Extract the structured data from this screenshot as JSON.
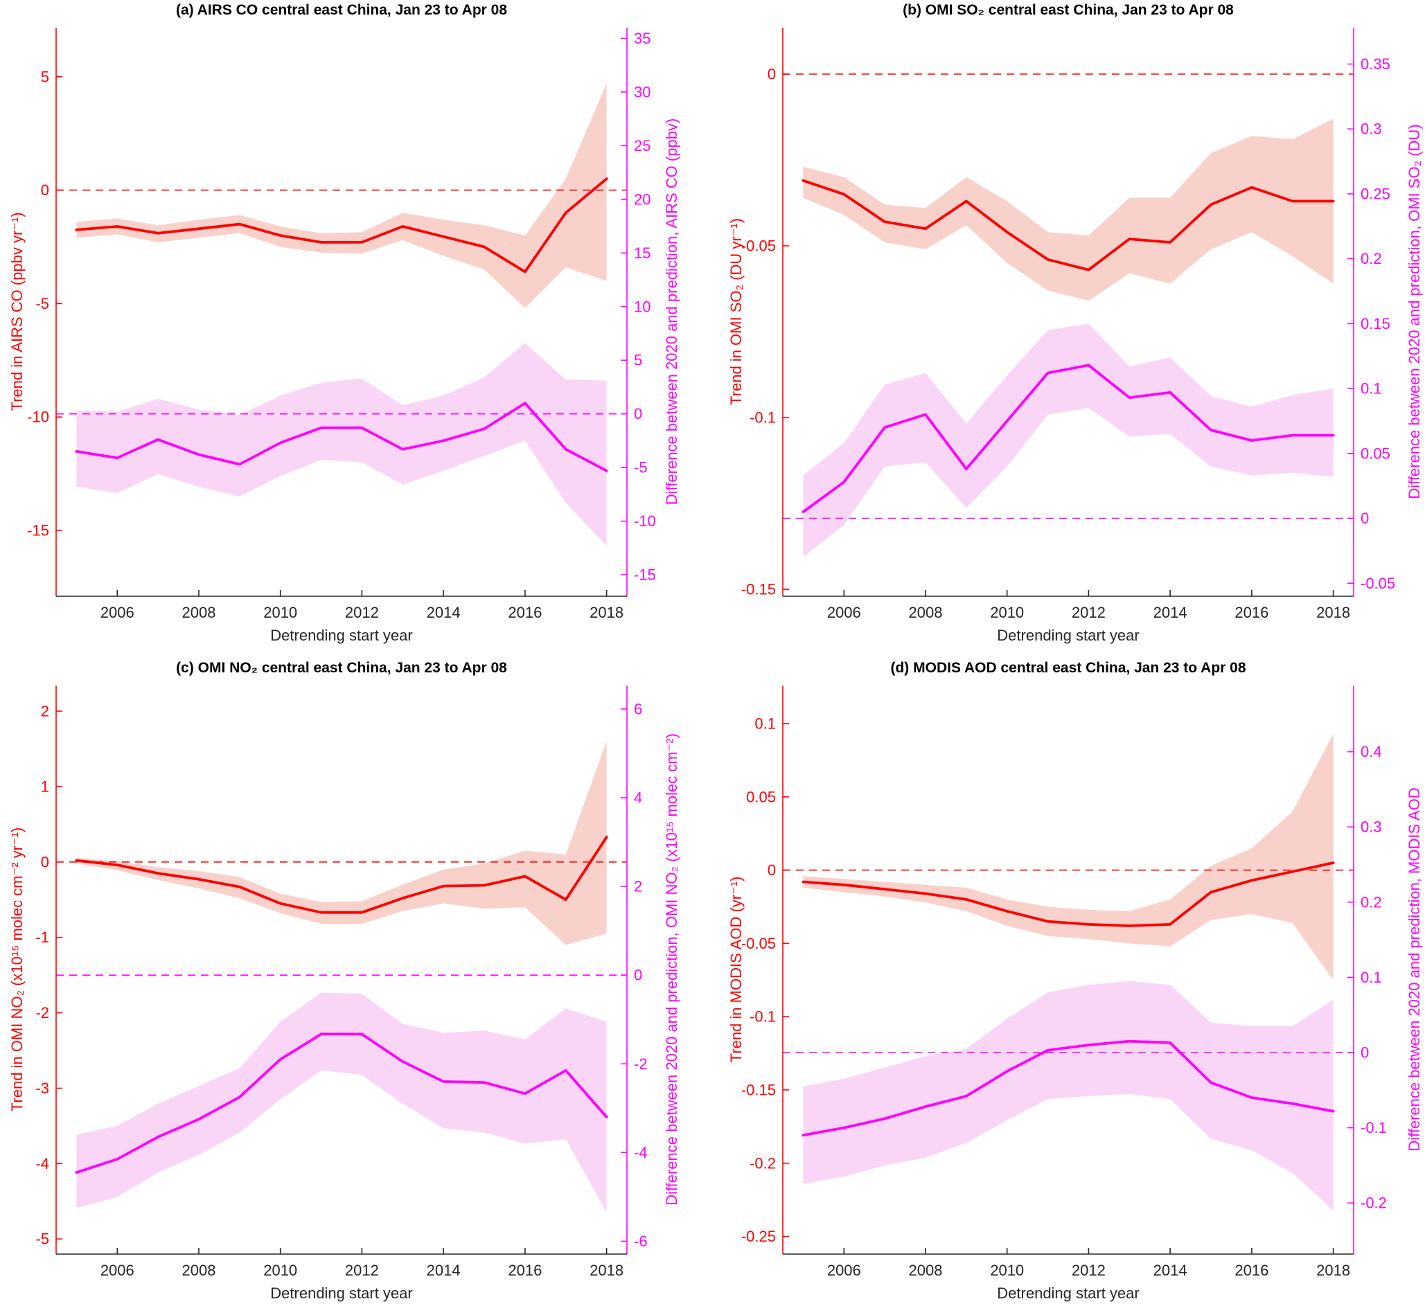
{
  "figure": {
    "background": "#ffffff",
    "xlabel": "Detrending start year",
    "x_ticks": [
      2006,
      2008,
      2010,
      2012,
      2014,
      2016,
      2018
    ],
    "xlim": [
      2004.5,
      2018.5
    ],
    "colors": {
      "trend_line": "#ff0000",
      "trend_band": "#f9d1cb",
      "diff_line": "#ff00ff",
      "diff_band": "#fad6f6",
      "x_axis": "#262626",
      "title_text": "#000000"
    }
  },
  "chart_data": [
    {
      "id": "a",
      "type": "line",
      "title": "(a) AIRS CO central east China, Jan 23 to Apr 08",
      "x": [
        2005,
        2006,
        2007,
        2008,
        2009,
        2010,
        2011,
        2012,
        2013,
        2014,
        2015,
        2016,
        2017,
        2018
      ],
      "left_axis": {
        "label": "Trend in AIRS CO (ppbv yr⁻¹)",
        "color": "#ff0000",
        "ticks": [
          5,
          0,
          -5,
          -10,
          -15
        ],
        "lim": [
          -17.9,
          7.16
        ],
        "zero_dashed_line": true
      },
      "right_axis": {
        "label": "Difference between 2020 and prediction, AIRS CO (ppbv)",
        "color": "#ff00ff",
        "ticks": [
          35,
          30,
          25,
          20,
          15,
          10,
          5,
          0,
          -5,
          -10,
          -15
        ],
        "lim": [
          -17.0,
          36.0
        ],
        "zero_dashed_line": true
      },
      "series": [
        {
          "name": "trend",
          "axis": "left",
          "color": "#ff0000",
          "band_color": "#f9d1cb",
          "values": [
            -1.75,
            -1.6,
            -1.9,
            -1.7,
            -1.5,
            -2.0,
            -2.3,
            -2.3,
            -1.6,
            -2.05,
            -2.5,
            -3.6,
            -1.0,
            0.5
          ],
          "band_upper": [
            -1.4,
            -1.25,
            -1.55,
            -1.3,
            -1.1,
            -1.6,
            -1.9,
            -1.85,
            -1.0,
            -1.3,
            -1.55,
            -2.0,
            0.5,
            4.7
          ],
          "band_lower": [
            -2.1,
            -1.95,
            -2.3,
            -2.1,
            -1.9,
            -2.5,
            -2.75,
            -2.8,
            -2.2,
            -2.9,
            -3.5,
            -5.2,
            -3.4,
            -4.0
          ]
        },
        {
          "name": "difference-2020-vs-prediction",
          "axis": "right",
          "color": "#ff00ff",
          "band_color": "#fad6f6",
          "values": [
            -3.5,
            -4.1,
            -2.4,
            -3.8,
            -4.7,
            -2.7,
            -1.3,
            -1.3,
            -3.3,
            -2.5,
            -1.4,
            1.0,
            -3.3,
            -5.3
          ],
          "band_upper": [
            0.3,
            0.2,
            1.4,
            0.4,
            -0.1,
            1.7,
            2.9,
            3.3,
            0.8,
            1.7,
            3.4,
            6.6,
            3.2,
            3.1
          ],
          "band_lower": [
            -6.8,
            -7.4,
            -5.6,
            -6.8,
            -7.7,
            -5.8,
            -4.3,
            -4.5,
            -6.6,
            -5.3,
            -3.9,
            -2.5,
            -8.3,
            -12.3
          ]
        }
      ]
    },
    {
      "id": "b",
      "type": "line",
      "title": "(b) OMI SO₂ central east China, Jan 23 to Apr 08",
      "x": [
        2005,
        2006,
        2007,
        2008,
        2009,
        2010,
        2011,
        2012,
        2013,
        2014,
        2015,
        2016,
        2017,
        2018
      ],
      "left_axis": {
        "label": "Trend in OMI SO₂ (DU yr⁻¹)",
        "color": "#ff0000",
        "ticks": [
          0,
          -0.05,
          -0.1,
          -0.15
        ],
        "lim": [
          -0.152,
          0.0135
        ],
        "zero_dashed_line": true
      },
      "right_axis": {
        "label": "Difference between 2020 and prediction, OMI SO₂ (DU)",
        "color": "#ff00ff",
        "ticks": [
          0.35,
          0.3,
          0.25,
          0.2,
          0.15,
          0.1,
          0.05,
          0,
          -0.05
        ],
        "lim": [
          -0.06,
          0.378
        ],
        "zero_dashed_line": true
      },
      "series": [
        {
          "name": "trend",
          "axis": "left",
          "color": "#ff0000",
          "band_color": "#f9d1cb",
          "values": [
            -0.031,
            -0.035,
            -0.043,
            -0.045,
            -0.037,
            -0.046,
            -0.054,
            -0.057,
            -0.048,
            -0.049,
            -0.038,
            -0.033,
            -0.037,
            -0.037
          ],
          "band_upper": [
            -0.027,
            -0.03,
            -0.038,
            -0.039,
            -0.03,
            -0.037,
            -0.046,
            -0.047,
            -0.036,
            -0.036,
            -0.023,
            -0.018,
            -0.019,
            -0.013
          ],
          "band_lower": [
            -0.036,
            -0.041,
            -0.049,
            -0.051,
            -0.044,
            -0.055,
            -0.063,
            -0.066,
            -0.058,
            -0.061,
            -0.051,
            -0.046,
            -0.053,
            -0.061
          ]
        },
        {
          "name": "difference-2020-vs-prediction",
          "axis": "right",
          "color": "#ff00ff",
          "band_color": "#fad6f6",
          "values": [
            0.005,
            0.028,
            0.07,
            0.08,
            0.038,
            0.075,
            0.112,
            0.118,
            0.093,
            0.097,
            0.068,
            0.06,
            0.064,
            0.064
          ],
          "band_upper": [
            0.033,
            0.058,
            0.103,
            0.112,
            0.073,
            0.11,
            0.145,
            0.15,
            0.117,
            0.124,
            0.094,
            0.086,
            0.095,
            0.1
          ],
          "band_lower": [
            -0.03,
            -0.005,
            0.04,
            0.043,
            0.008,
            0.04,
            0.08,
            0.085,
            0.063,
            0.065,
            0.04,
            0.033,
            0.035,
            0.032
          ]
        }
      ]
    },
    {
      "id": "c",
      "type": "line",
      "title": "(c) OMI NO₂ central east China, Jan 23 to Apr 08",
      "x": [
        2005,
        2006,
        2007,
        2008,
        2009,
        2010,
        2011,
        2012,
        2013,
        2014,
        2015,
        2016,
        2017,
        2018
      ],
      "left_axis": {
        "label": "Trend in OMI NO₂ (x10¹⁵ molec cm⁻² yr⁻¹)",
        "color": "#ff0000",
        "ticks": [
          2,
          1,
          0,
          -1,
          -2,
          -3,
          -4,
          -5
        ],
        "lim": [
          -5.2,
          2.34
        ],
        "zero_dashed_line": true
      },
      "right_axis": {
        "label": "Difference between 2020 and prediction, OMI NO₂ (x10¹⁵ molec cm⁻²)",
        "color": "#ff00ff",
        "ticks": [
          6,
          4,
          2,
          0,
          -2,
          -4,
          -6
        ],
        "lim": [
          -6.29,
          6.53
        ],
        "zero_dashed_line": true
      },
      "series": [
        {
          "name": "trend",
          "axis": "left",
          "color": "#ff0000",
          "band_color": "#f9d1cb",
          "values": [
            0.02,
            -0.04,
            -0.15,
            -0.23,
            -0.33,
            -0.55,
            -0.67,
            -0.67,
            -0.48,
            -0.32,
            -0.31,
            -0.19,
            -0.5,
            0.33
          ],
          "band_upper": [
            0.05,
            0.01,
            -0.07,
            -0.12,
            -0.2,
            -0.42,
            -0.53,
            -0.52,
            -0.3,
            -0.1,
            -0.02,
            0.15,
            0.1,
            1.6
          ],
          "band_lower": [
            -0.02,
            -0.11,
            -0.24,
            -0.35,
            -0.48,
            -0.68,
            -0.82,
            -0.82,
            -0.65,
            -0.55,
            -0.62,
            -0.6,
            -1.1,
            -0.95
          ]
        },
        {
          "name": "difference-2020-vs-prediction",
          "axis": "right",
          "color": "#ff00ff",
          "band_color": "#fad6f6",
          "values": [
            -4.45,
            -4.15,
            -3.65,
            -3.25,
            -2.75,
            -1.9,
            -1.33,
            -1.33,
            -1.95,
            -2.4,
            -2.42,
            -2.67,
            -2.15,
            -3.2
          ],
          "band_upper": [
            -3.6,
            -3.4,
            -2.9,
            -2.5,
            -2.1,
            -1.05,
            -0.4,
            -0.42,
            -1.1,
            -1.3,
            -1.25,
            -1.45,
            -0.75,
            -1.05
          ],
          "band_lower": [
            -5.25,
            -5.0,
            -4.45,
            -4.05,
            -3.55,
            -2.8,
            -2.15,
            -2.25,
            -2.9,
            -3.45,
            -3.55,
            -3.8,
            -3.7,
            -5.35
          ]
        }
      ]
    },
    {
      "id": "d",
      "type": "line",
      "title": "(d) MODIS AOD central east China, Jan 23 to Apr 08",
      "x": [
        2005,
        2006,
        2007,
        2008,
        2009,
        2010,
        2011,
        2012,
        2013,
        2014,
        2015,
        2016,
        2017,
        2018
      ],
      "left_axis": {
        "label": "Trend in MODIS AOD (yr⁻¹)",
        "color": "#ff0000",
        "ticks": [
          0.1,
          0.05,
          0,
          -0.05,
          -0.1,
          -0.15,
          -0.2,
          -0.25
        ],
        "lim": [
          -0.262,
          0.126
        ],
        "zero_dashed_line": true
      },
      "right_axis": {
        "label": "Difference between 2020 and prediction, MODIS AOD",
        "color": "#ff00ff",
        "ticks": [
          0.4,
          0.3,
          0.2,
          0.1,
          0,
          -0.1,
          -0.2
        ],
        "lim": [
          -0.268,
          0.488
        ],
        "zero_dashed_line": true
      },
      "series": [
        {
          "name": "trend",
          "axis": "left",
          "color": "#ff0000",
          "band_color": "#f9d1cb",
          "values": [
            -0.008,
            -0.01,
            -0.013,
            -0.016,
            -0.02,
            -0.028,
            -0.035,
            -0.037,
            -0.038,
            -0.037,
            -0.015,
            -0.007,
            -0.001,
            0.005
          ],
          "band_upper": [
            -0.004,
            -0.006,
            -0.008,
            -0.01,
            -0.012,
            -0.02,
            -0.025,
            -0.027,
            -0.028,
            -0.02,
            0.003,
            0.015,
            0.04,
            0.093
          ],
          "band_lower": [
            -0.012,
            -0.015,
            -0.018,
            -0.022,
            -0.028,
            -0.038,
            -0.045,
            -0.047,
            -0.05,
            -0.052,
            -0.034,
            -0.03,
            -0.036,
            -0.075
          ]
        },
        {
          "name": "difference-2020-vs-prediction",
          "axis": "right",
          "color": "#ff00ff",
          "band_color": "#fad6f6",
          "values": [
            -0.11,
            -0.1,
            -0.088,
            -0.072,
            -0.058,
            -0.025,
            0.003,
            0.01,
            0.015,
            0.013,
            -0.04,
            -0.06,
            -0.068,
            -0.078
          ],
          "band_upper": [
            -0.045,
            -0.035,
            -0.02,
            -0.005,
            0.005,
            0.045,
            0.08,
            0.09,
            0.095,
            0.09,
            0.04,
            0.035,
            0.035,
            0.07
          ],
          "band_lower": [
            -0.175,
            -0.165,
            -0.15,
            -0.14,
            -0.12,
            -0.09,
            -0.062,
            -0.058,
            -0.055,
            -0.062,
            -0.115,
            -0.13,
            -0.16,
            -0.21
          ]
        }
      ]
    }
  ]
}
